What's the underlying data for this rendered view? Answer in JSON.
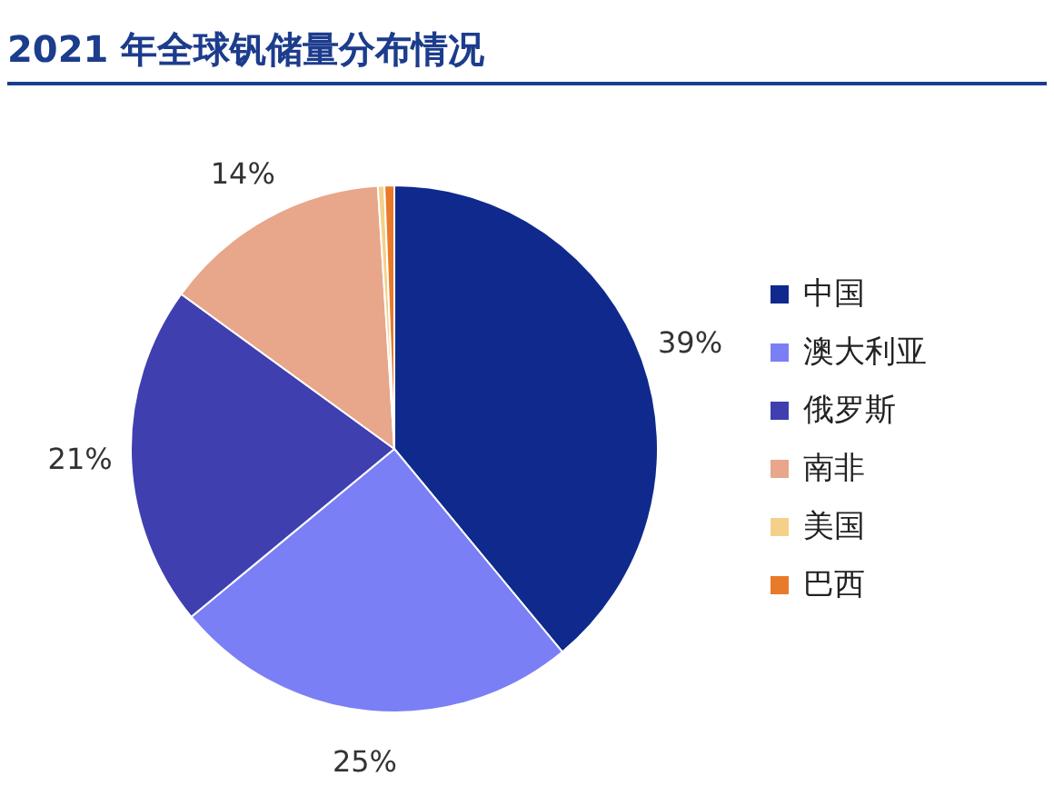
{
  "chart_data": {
    "type": "pie",
    "title": "2021 年全球钒储量分布情况",
    "categories": [
      "中国",
      "澳大利亚",
      "俄罗斯",
      "南非",
      "美国",
      "巴西"
    ],
    "values": [
      39,
      25,
      21,
      14,
      0.4,
      0.6
    ],
    "value_labels": [
      "39%",
      "25%",
      "21%",
      "14%",
      null,
      null
    ],
    "colors": [
      "#0f2a8c",
      "#7b7ff5",
      "#3f3fb0",
      "#e8a68a",
      "#f5d08a",
      "#e87a2a"
    ],
    "legend": "right"
  }
}
